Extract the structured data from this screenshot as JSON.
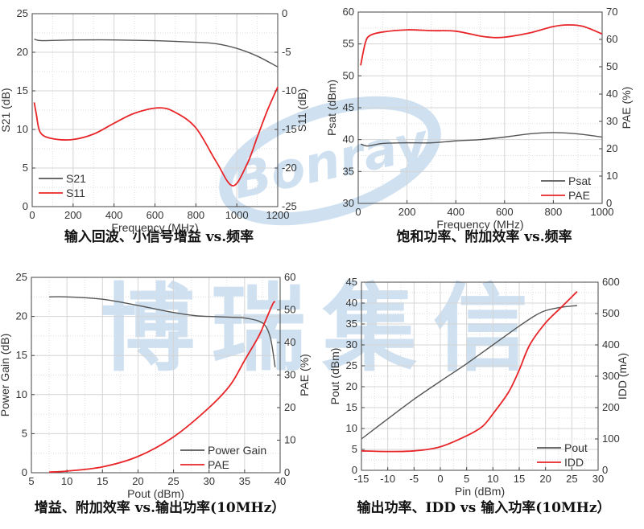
{
  "watermark": {
    "logo_text": "Bonray",
    "chinese_text": "博瑞集信",
    "color": "#cfe1f1"
  },
  "chart_data": [
    {
      "type": "line",
      "caption": "输入回波、小信号增益 vs.频率",
      "xlabel": "Frequency (MHz)",
      "ylabel": "S21 (dB)",
      "y2label": "S11 (dB)",
      "xlim": [
        0,
        1200
      ],
      "ylim": [
        0,
        25
      ],
      "y2lim": [
        -25,
        0
      ],
      "xticks": [
        0,
        200,
        400,
        600,
        800,
        1000,
        1200
      ],
      "yticks": [
        0,
        5,
        10,
        15,
        20,
        25
      ],
      "y2ticks": [
        -25,
        -20,
        -15,
        -10,
        -5,
        0
      ],
      "grid": true,
      "legend": "bottom-left",
      "series": [
        {
          "name": "S21",
          "axis": "left",
          "color": "#555555",
          "x": [
            10,
            50,
            200,
            400,
            600,
            800,
            900,
            1000,
            1100,
            1200
          ],
          "y": [
            21.7,
            21.5,
            21.6,
            21.6,
            21.5,
            21.3,
            21.1,
            20.5,
            19.5,
            18.1
          ]
        },
        {
          "name": "S11",
          "axis": "right",
          "color": "#e8262a",
          "x": [
            10,
            20,
            40,
            100,
            200,
            300,
            400,
            500,
            620,
            700,
            800,
            900,
            980,
            1050,
            1100,
            1150,
            1200
          ],
          "y": [
            -11.5,
            -13,
            -15.4,
            -16.2,
            -16.3,
            -15.6,
            -14.2,
            -12.9,
            -12.2,
            -12.8,
            -14.8,
            -19.2,
            -22.3,
            -19.5,
            -16,
            -12.5,
            -9.5
          ]
        }
      ]
    },
    {
      "type": "line",
      "caption": "饱和功率、附加效率  vs.频率",
      "xlabel": "Frequency (MHz)",
      "ylabel": "Psat (dBm)",
      "y2label": "PAE (%)",
      "xlim": [
        0,
        1000
      ],
      "ylim": [
        30,
        60
      ],
      "y2lim": [
        0,
        70
      ],
      "xticks": [
        0,
        200,
        400,
        600,
        800,
        1000
      ],
      "yticks": [
        30,
        35,
        40,
        45,
        50,
        55,
        60
      ],
      "y2ticks": [
        0,
        10,
        20,
        30,
        40,
        50,
        60,
        70
      ],
      "grid": true,
      "legend": "bottom-right",
      "series": [
        {
          "name": "Psat",
          "axis": "left",
          "color": "#555555",
          "x": [
            10,
            40,
            100,
            200,
            300,
            400,
            500,
            600,
            700,
            800,
            900,
            1000
          ],
          "y": [
            39.3,
            39.0,
            39.4,
            39.5,
            39.5,
            39.8,
            40.0,
            40.4,
            40.9,
            41.1,
            40.9,
            40.4
          ]
        },
        {
          "name": "PAE",
          "axis": "right",
          "color": "#e8262a",
          "x": [
            10,
            30,
            50,
            100,
            200,
            300,
            400,
            500,
            550,
            600,
            700,
            800,
            860,
            920,
            1000
          ],
          "y": [
            50.5,
            59,
            61.5,
            62.7,
            63.5,
            63.2,
            63,
            61.2,
            60.7,
            60.8,
            62.3,
            64.7,
            65.3,
            64.8,
            62
          ]
        }
      ]
    },
    {
      "type": "line",
      "caption": "增益、附加效率  vs.输出功率(10MHz）",
      "xlabel": "Pout (dBm)",
      "ylabel": "Power Gain (dB)",
      "y2label": "PAE (%)",
      "xlim": [
        5,
        40
      ],
      "ylim": [
        0,
        25
      ],
      "y2lim": [
        0,
        60
      ],
      "xticks": [
        5,
        10,
        15,
        20,
        25,
        30,
        35,
        40
      ],
      "yticks": [
        0,
        5,
        10,
        15,
        20,
        25
      ],
      "y2ticks": [
        0,
        10,
        20,
        30,
        40,
        50,
        60
      ],
      "grid": true,
      "legend": "bottom-right",
      "series": [
        {
          "name": "Power Gain",
          "axis": "left",
          "color": "#555555",
          "x": [
            7.5,
            10,
            15,
            20,
            25,
            28,
            30,
            33,
            35,
            37,
            38,
            38.7,
            39.3
          ],
          "y": [
            22.5,
            22.5,
            22.2,
            21.4,
            20.5,
            20.1,
            20.0,
            19.9,
            19.8,
            19.4,
            18.7,
            17,
            13.5
          ]
        },
        {
          "name": "PAE",
          "axis": "right",
          "color": "#e8262a",
          "x": [
            7.5,
            10,
            15,
            20,
            25,
            30,
            33,
            35,
            37,
            38,
            39,
            39.3
          ],
          "y": [
            0.2,
            0.5,
            1.8,
            5,
            11,
            20,
            27,
            34.5,
            42,
            47,
            52,
            52.5
          ]
        }
      ]
    },
    {
      "type": "line",
      "caption": "输出功率、IDD vs  输入功率(10MHz）",
      "xlabel": "Pin (dBm)",
      "ylabel": "Pout (dBm)",
      "y2label": "IDD (mA)",
      "xlim": [
        -15,
        30
      ],
      "ylim": [
        0,
        45
      ],
      "y2lim": [
        0,
        600
      ],
      "xticks": [
        -15,
        -10,
        -5,
        0,
        5,
        10,
        15,
        20,
        25,
        30
      ],
      "yticks": [
        0,
        5,
        10,
        15,
        20,
        25,
        30,
        35,
        40,
        45
      ],
      "y2ticks": [
        0,
        100,
        200,
        300,
        400,
        500,
        600
      ],
      "grid": true,
      "legend": "bottom-right",
      "series": [
        {
          "name": "Pout",
          "axis": "left",
          "color": "#555555",
          "x": [
            -15,
            -10,
            -5,
            0,
            5,
            10,
            15,
            18,
            20,
            23,
            26
          ],
          "y": [
            7.5,
            12.3,
            17,
            21.3,
            25.5,
            30,
            34.5,
            37,
            38.2,
            39,
            39.4
          ]
        },
        {
          "name": "IDD",
          "axis": "right",
          "color": "#e8262a",
          "x": [
            -15,
            -10,
            -5,
            0,
            5,
            8,
            10,
            13,
            15,
            17,
            20,
            23,
            26
          ],
          "y": [
            62,
            60,
            62,
            75,
            110,
            140,
            180,
            250,
            320,
            400,
            470,
            520,
            570
          ]
        }
      ]
    }
  ]
}
